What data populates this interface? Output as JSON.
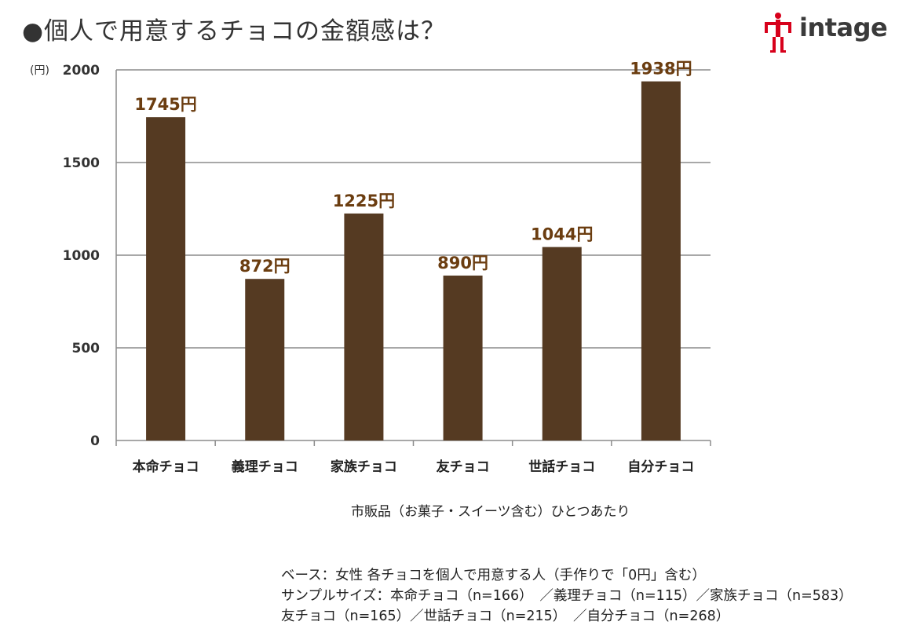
{
  "title": "●個人で用意するチョコの金額感は？",
  "logo": {
    "text": "intage",
    "icon": "intage-figure-logo-icon",
    "accent_color": "#d7001b"
  },
  "chart_data": {
    "type": "bar",
    "categories": [
      "本命チョコ",
      "義理チョコ",
      "家族チョコ",
      "友チョコ",
      "世話チョコ",
      "自分チョコ"
    ],
    "values": [
      1745,
      872,
      1225,
      890,
      1044,
      1938
    ],
    "data_labels": [
      "1745円",
      "872円",
      "1225円",
      "890円",
      "1044円",
      "1938円"
    ],
    "title": "",
    "ylabel": "(円)",
    "xlabel": "市販品（お菓子・スイーツ含む）ひとつあたり",
    "ylim": [
      0,
      2000
    ],
    "yticks": [
      0,
      500,
      1000,
      1500,
      2000
    ],
    "grid": true,
    "bar_color": "#553a22",
    "label_color": "#6b3d10"
  },
  "footnote": {
    "lines": [
      "ベース：女性 各チョコを個人で用意する人（手作りで「0円」含む）",
      "サンプルサイズ：本命チョコ（n=166）　／義理チョコ（n=115）／家族チョコ（n=583）",
      "友チョコ（n=165）／世話チョコ（n=215）　／自分チョコ（n=268）"
    ]
  }
}
